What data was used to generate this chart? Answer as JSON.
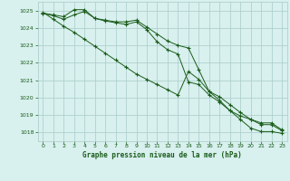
{
  "title": "Graphe pression niveau de la mer (hPa)",
  "background_color": "#d8f0ee",
  "grid_color": "#a8ccc8",
  "line_color": "#1a5c1a",
  "x_values": [
    0,
    1,
    2,
    3,
    4,
    5,
    6,
    7,
    8,
    9,
    10,
    11,
    12,
    13,
    14,
    15,
    16,
    17,
    18,
    19,
    20,
    21,
    22,
    23
  ],
  "line1": [
    1024.85,
    1024.75,
    1024.65,
    1025.05,
    1025.05,
    1024.55,
    1024.45,
    1024.35,
    1024.35,
    1024.45,
    1024.05,
    1023.65,
    1023.25,
    1023.0,
    1022.85,
    1021.6,
    1020.35,
    1020.05,
    1019.6,
    1019.15,
    1018.75,
    1018.55,
    1018.55,
    1018.15
  ],
  "line2": [
    1024.85,
    1024.7,
    1024.5,
    1024.75,
    1024.95,
    1024.55,
    1024.4,
    1024.3,
    1024.2,
    1024.35,
    1023.9,
    1023.2,
    1022.75,
    1022.5,
    1020.9,
    1020.75,
    1020.15,
    1019.75,
    1019.25,
    1018.95,
    1018.75,
    1018.45,
    1018.45,
    1018.1
  ],
  "line3": [
    1024.9,
    1024.5,
    1024.1,
    1023.75,
    1023.35,
    1022.95,
    1022.55,
    1022.15,
    1021.75,
    1021.35,
    1021.05,
    1020.75,
    1020.45,
    1020.15,
    1021.5,
    1021.05,
    1020.35,
    1019.85,
    1019.25,
    1018.75,
    1018.25,
    1018.05,
    1018.05,
    1017.95
  ],
  "ylim": [
    1017.5,
    1025.5
  ],
  "yticks": [
    1018,
    1019,
    1020,
    1021,
    1022,
    1023,
    1024,
    1025
  ],
  "xticks": [
    0,
    1,
    2,
    3,
    4,
    5,
    6,
    7,
    8,
    9,
    10,
    11,
    12,
    13,
    14,
    15,
    16,
    17,
    18,
    19,
    20,
    21,
    22,
    23
  ]
}
